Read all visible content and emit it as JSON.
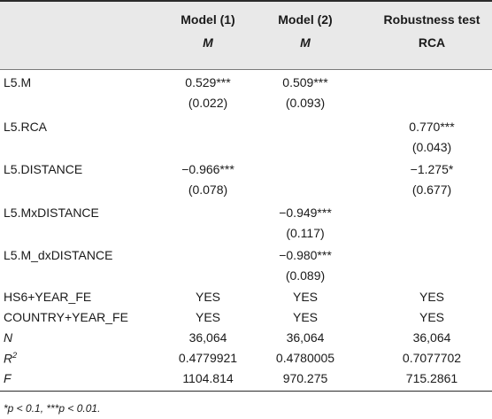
{
  "headers": [
    {
      "top": "Model (1)",
      "sub": "M"
    },
    {
      "top": "Model (2)",
      "sub": "M"
    },
    {
      "top": "Robustness test",
      "sub": "RCA"
    }
  ],
  "rows": [
    {
      "label": "L5.M",
      "coef": [
        "0.529***",
        "0.509***",
        ""
      ],
      "se": [
        "(0.022)",
        "(0.093)",
        ""
      ]
    },
    {
      "label": "L5.RCA",
      "coef": [
        "",
        "",
        "0.770***"
      ],
      "se": [
        "",
        "",
        "(0.043)"
      ]
    },
    {
      "label": "L5.DISTANCE",
      "coef": [
        "−0.966***",
        "",
        "−1.275*"
      ],
      "se": [
        "(0.078)",
        "",
        "(0.677)"
      ]
    },
    {
      "label": "L5.MxDISTANCE",
      "coef": [
        "",
        "−0.949***",
        ""
      ],
      "se": [
        "",
        "(0.117)",
        ""
      ]
    },
    {
      "label": "L5.M_dxDISTANCE",
      "coef": [
        "",
        "−0.980***",
        ""
      ],
      "se": [
        "",
        "(0.089)",
        ""
      ]
    }
  ],
  "footer_rows": [
    {
      "label": "HS6+YEAR_FE",
      "values": [
        "YES",
        "YES",
        "YES"
      ]
    },
    {
      "label": "COUNTRY+YEAR_FE",
      "values": [
        "YES",
        "YES",
        "YES"
      ]
    },
    {
      "label": "N",
      "values": [
        "36,064",
        "36,064",
        "36,064"
      ]
    },
    {
      "label": "R",
      "label_sup": "2",
      "values": [
        "0.4779921",
        "0.4780005",
        "0.7077702"
      ]
    },
    {
      "label": "F",
      "values": [
        "1104.814",
        "970.275",
        "715.2861"
      ]
    }
  ],
  "note": "*p < 0.1, ***p < 0.01."
}
